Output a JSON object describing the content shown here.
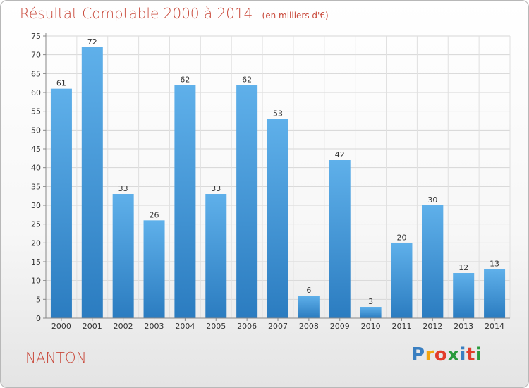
{
  "chart_data": {
    "type": "bar",
    "title": "Résultat Comptable 2000 à 2014",
    "subtitle": "(en milliers d'€)",
    "categories": [
      "2000",
      "2001",
      "2002",
      "2003",
      "2004",
      "2005",
      "2006",
      "2007",
      "2008",
      "2009",
      "2010",
      "2011",
      "2012",
      "2013",
      "2014"
    ],
    "values": [
      61,
      72,
      33,
      26,
      62,
      33,
      62,
      53,
      6,
      42,
      3,
      20,
      30,
      12,
      13
    ],
    "ylim": [
      0,
      75
    ],
    "yticks": [
      0,
      5,
      10,
      15,
      20,
      25,
      30,
      35,
      40,
      45,
      50,
      55,
      60,
      65,
      70,
      75
    ],
    "grid": true,
    "legend": "none",
    "bar_color": "#4a9bd8"
  },
  "commune": "NANTON",
  "logo": {
    "letters": [
      "P",
      "r",
      "o",
      "x",
      "i",
      "t",
      "i"
    ],
    "colors": [
      "#3a7fc1",
      "#f2a40f",
      "#e23d2b",
      "#2a9a3c",
      "#3a7fc1",
      "#e23d2b",
      "#2a9a3c"
    ]
  }
}
